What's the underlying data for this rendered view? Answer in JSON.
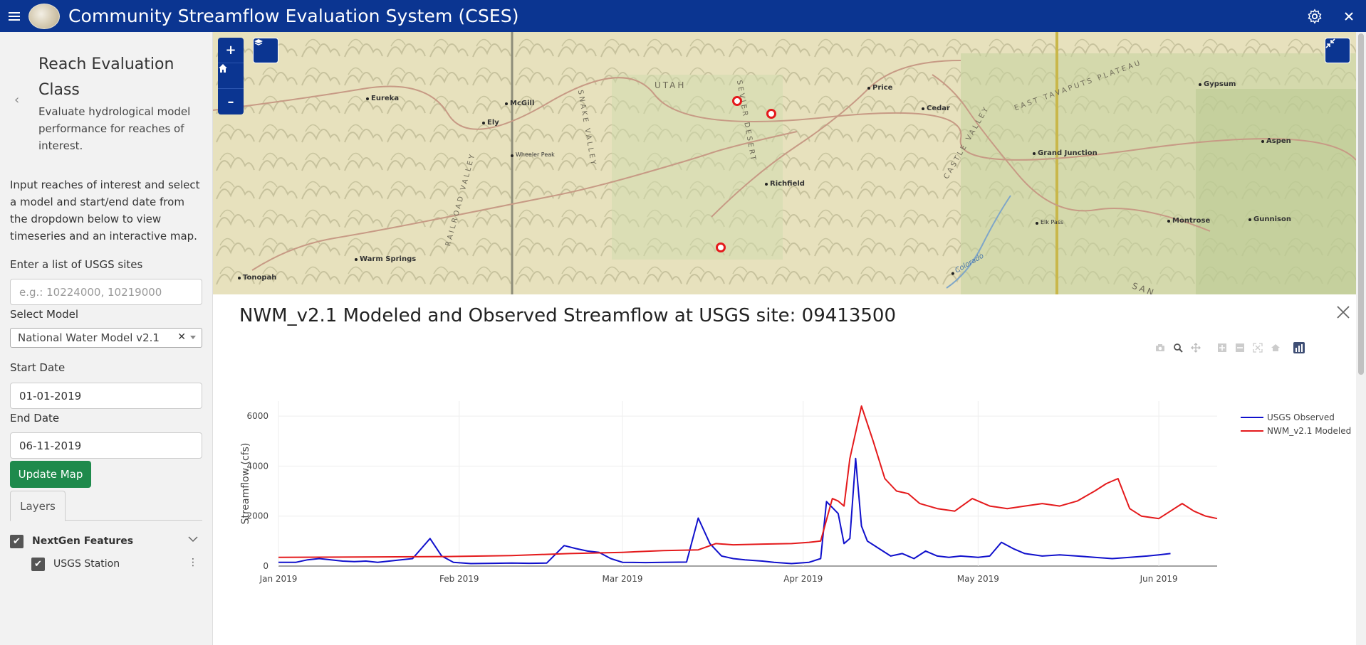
{
  "header": {
    "title": "Community Streamflow Evaluation System (CSES)",
    "menu_icon": "hamburger-icon",
    "settings_icon": "gear-icon",
    "close_icon": "close-icon",
    "bar_color": "#0b3591"
  },
  "sidebar": {
    "class_title": "Reach Evaluation Class",
    "class_description": "Evaluate hydrological model performance for reaches of interest.",
    "intro": "Input reaches of interest and select a model and start/end date from the dropdown below to view timeseries and an interactive map.",
    "sites_label": "Enter a list of USGS sites",
    "sites_placeholder": "e.g.: 10224000, 10219000",
    "model_label": "Select Model",
    "model_value": "National Water Model v2.1",
    "start_label": "Start Date",
    "start_value": "01-01-2019",
    "end_label": "End Date",
    "end_value": "06-11-2019",
    "update_button": "Update Map",
    "tab_layers": "Layers",
    "layer_group": "NextGen Features",
    "layer_item": "USGS Station"
  },
  "map": {
    "towns": [
      "Eureka",
      "McGill",
      "Ely",
      "Wheeler Peak",
      "Warm Springs",
      "Tonopah",
      "Richfield",
      "Price",
      "Cedar",
      "Grand Junction",
      "Gypsum",
      "Aspen",
      "Montrose",
      "Gunnison",
      "Colorado",
      "Elk Pass"
    ],
    "region_labels": [
      "UTAH",
      "SEVIER DESERT",
      "SNAKE VALLEY",
      "RAILROAD VALLEY",
      "CASTLE VALLEY",
      "EAST TAVAPUTS PLATEAU",
      "SAN"
    ],
    "buttons": [
      "+",
      "home",
      "-",
      "layers",
      "fullscreen-exit"
    ]
  },
  "chart_panel": {
    "title": "NWM_v2.1 Modeled and Observed Streamflow at USGS site: 09413500",
    "modebar_icons": [
      "camera-icon",
      "zoom-icon",
      "pan-icon",
      "zoom-in-icon",
      "zoom-out-icon",
      "autoscale-icon",
      "reset-axes-icon",
      "plotly-logo-icon"
    ]
  },
  "chart_data": {
    "type": "line",
    "title": "NWM_v2.1 Modeled and Observed Streamflow at USGS site: 09413500",
    "xlabel": "",
    "ylabel": "Streamflow (cfs)",
    "x_ticks": [
      "Jan 2019",
      "Feb 2019",
      "Mar 2019",
      "Apr 2019",
      "May 2019",
      "Jun 2019"
    ],
    "y_ticks": [
      0,
      2000,
      4000,
      6000
    ],
    "ylim": [
      0,
      6600
    ],
    "xlim": [
      "2019-01-01",
      "2019-06-11"
    ],
    "legend": "top-right",
    "series": [
      {
        "name": "USGS Observed",
        "color": "#1010cc",
        "points": [
          [
            "2019-01-01",
            150
          ],
          [
            "2019-01-04",
            150
          ],
          [
            "2019-01-06",
            250
          ],
          [
            "2019-01-08",
            300
          ],
          [
            "2019-01-10",
            250
          ],
          [
            "2019-01-12",
            200
          ],
          [
            "2019-01-14",
            180
          ],
          [
            "2019-01-16",
            200
          ],
          [
            "2019-01-18",
            150
          ],
          [
            "2019-01-20",
            200
          ],
          [
            "2019-01-22",
            250
          ],
          [
            "2019-01-24",
            300
          ],
          [
            "2019-01-27",
            1100
          ],
          [
            "2019-01-29",
            400
          ],
          [
            "2019-01-31",
            150
          ],
          [
            "2019-02-03",
            100
          ],
          [
            "2019-02-07",
            110
          ],
          [
            "2019-02-10",
            120
          ],
          [
            "2019-02-13",
            110
          ],
          [
            "2019-02-16",
            120
          ],
          [
            "2019-02-19",
            820
          ],
          [
            "2019-02-21",
            700
          ],
          [
            "2019-02-23",
            600
          ],
          [
            "2019-02-25",
            550
          ],
          [
            "2019-02-27",
            300
          ],
          [
            "2019-03-01",
            150
          ],
          [
            "2019-03-05",
            140
          ],
          [
            "2019-03-08",
            150
          ],
          [
            "2019-03-12",
            160
          ],
          [
            "2019-03-14",
            1920
          ],
          [
            "2019-03-16",
            900
          ],
          [
            "2019-03-18",
            400
          ],
          [
            "2019-03-20",
            300
          ],
          [
            "2019-03-22",
            250
          ],
          [
            "2019-03-25",
            200
          ],
          [
            "2019-03-27",
            150
          ],
          [
            "2019-03-30",
            100
          ],
          [
            "2019-04-02",
            150
          ],
          [
            "2019-04-04",
            300
          ],
          [
            "2019-04-05",
            2580
          ],
          [
            "2019-04-07",
            2100
          ],
          [
            "2019-04-08",
            900
          ],
          [
            "2019-04-09",
            1100
          ],
          [
            "2019-04-10",
            4300
          ],
          [
            "2019-04-11",
            1600
          ],
          [
            "2019-04-12",
            1000
          ],
          [
            "2019-04-14",
            700
          ],
          [
            "2019-04-16",
            400
          ],
          [
            "2019-04-18",
            500
          ],
          [
            "2019-04-20",
            300
          ],
          [
            "2019-04-22",
            600
          ],
          [
            "2019-04-24",
            400
          ],
          [
            "2019-04-26",
            350
          ],
          [
            "2019-04-28",
            400
          ],
          [
            "2019-05-01",
            350
          ],
          [
            "2019-05-03",
            400
          ],
          [
            "2019-05-05",
            950
          ],
          [
            "2019-05-07",
            700
          ],
          [
            "2019-05-09",
            500
          ],
          [
            "2019-05-12",
            400
          ],
          [
            "2019-05-15",
            450
          ],
          [
            "2019-05-18",
            400
          ],
          [
            "2019-05-21",
            350
          ],
          [
            "2019-05-24",
            300
          ],
          [
            "2019-05-27",
            350
          ],
          [
            "2019-05-30",
            400
          ],
          [
            "2019-06-01",
            450
          ],
          [
            "2019-06-03",
            500
          ]
        ]
      },
      {
        "name": "NWM_v2.1 Modeled",
        "color": "#e41a1c",
        "points": [
          [
            "2019-01-01",
            350
          ],
          [
            "2019-01-15",
            360
          ],
          [
            "2019-01-30",
            380
          ],
          [
            "2019-02-10",
            420
          ],
          [
            "2019-02-20",
            500
          ],
          [
            "2019-03-01",
            550
          ],
          [
            "2019-03-08",
            620
          ],
          [
            "2019-03-14",
            650
          ],
          [
            "2019-03-17",
            900
          ],
          [
            "2019-03-20",
            850
          ],
          [
            "2019-03-25",
            880
          ],
          [
            "2019-03-30",
            900
          ],
          [
            "2019-04-02",
            950
          ],
          [
            "2019-04-04",
            1000
          ],
          [
            "2019-04-06",
            2700
          ],
          [
            "2019-04-07",
            2600
          ],
          [
            "2019-04-08",
            2400
          ],
          [
            "2019-04-09",
            4300
          ],
          [
            "2019-04-11",
            6400
          ],
          [
            "2019-04-13",
            5000
          ],
          [
            "2019-04-15",
            3500
          ],
          [
            "2019-04-17",
            3000
          ],
          [
            "2019-04-19",
            2900
          ],
          [
            "2019-04-21",
            2500
          ],
          [
            "2019-04-24",
            2300
          ],
          [
            "2019-04-27",
            2200
          ],
          [
            "2019-04-30",
            2700
          ],
          [
            "2019-05-03",
            2400
          ],
          [
            "2019-05-06",
            2300
          ],
          [
            "2019-05-09",
            2400
          ],
          [
            "2019-05-12",
            2500
          ],
          [
            "2019-05-15",
            2400
          ],
          [
            "2019-05-18",
            2600
          ],
          [
            "2019-05-21",
            3000
          ],
          [
            "2019-05-23",
            3300
          ],
          [
            "2019-05-25",
            3500
          ],
          [
            "2019-05-27",
            2300
          ],
          [
            "2019-05-29",
            2000
          ],
          [
            "2019-06-01",
            1900
          ],
          [
            "2019-06-03",
            2200
          ],
          [
            "2019-06-05",
            2500
          ],
          [
            "2019-06-07",
            2200
          ],
          [
            "2019-06-09",
            2000
          ],
          [
            "2019-06-11",
            1900
          ]
        ]
      }
    ]
  }
}
